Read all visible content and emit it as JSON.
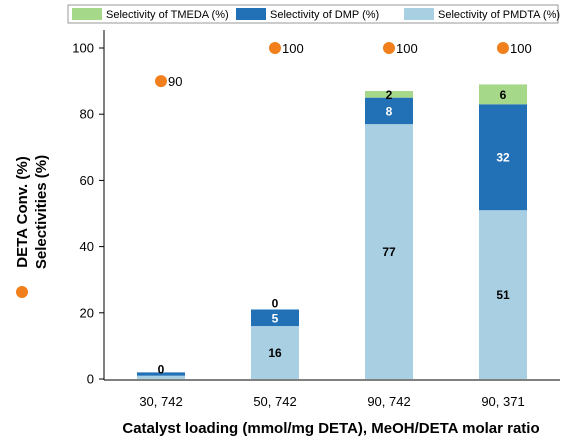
{
  "chart_data": {
    "type": "bar",
    "stacked": true,
    "categories": [
      "30, 742",
      "50, 742",
      "90, 742",
      "90, 371"
    ],
    "series": [
      {
        "name": "Selectivity of PMDTA (%)",
        "values": [
          1,
          16,
          77,
          51
        ],
        "labels": [
          "",
          "16",
          "77",
          "51"
        ],
        "color": "#a9cfe3",
        "label_color": "#000000"
      },
      {
        "name": "Selectivity of DMP (%)",
        "values": [
          1,
          5,
          8,
          32
        ],
        "labels": [
          "",
          "5",
          "8",
          "32"
        ],
        "color": "#2270b5",
        "label_color": "#ffffff"
      },
      {
        "name": "Selectivity of TMEDA (%)",
        "values": [
          0,
          0,
          2,
          6
        ],
        "labels": [
          "0",
          "0",
          "2",
          "6"
        ],
        "color": "#a6d88a",
        "label_color": "#000000"
      }
    ],
    "overlay": {
      "name": "DETA Conv. (%)",
      "type": "scatter",
      "values": [
        90,
        100,
        100,
        100
      ],
      "labels": [
        "90",
        "100",
        "100",
        "100"
      ],
      "color": "#f07f1c"
    },
    "legend_order": [
      "Selectivity of TMEDA (%)",
      "Selectivity of DMP (%)",
      "Selectivity of PMDTA (%)"
    ],
    "xlabel": "Catalyst loading (mmol/mg DETA), MeOH/DETA molar ratio",
    "ylabel_line1": "DETA Conv. (%)",
    "ylabel_line2": "Selectivities (%)",
    "ylim": [
      0,
      100
    ],
    "yticks": [
      0,
      20,
      40,
      60,
      80,
      100
    ],
    "legend_position": "top",
    "grid": false
  }
}
